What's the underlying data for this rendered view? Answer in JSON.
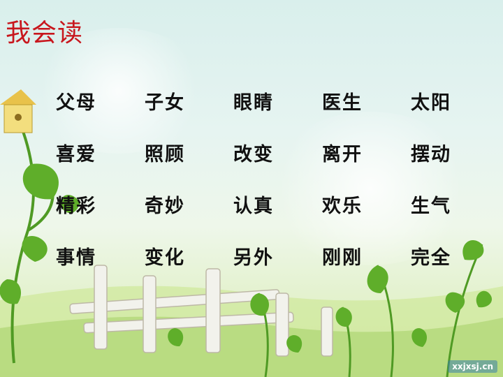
{
  "title": "我会读",
  "words": [
    [
      "父母",
      "子女",
      "眼睛",
      "医生",
      "太阳"
    ],
    [
      "喜爱",
      "照顾",
      "改变",
      "离开",
      "摆动"
    ],
    [
      "精彩",
      "奇妙",
      "认真",
      "欢乐",
      "生气"
    ],
    [
      "事情",
      "变化",
      "另外",
      "刚刚",
      "完全"
    ]
  ],
  "watermark": "xxjxsj.cn",
  "colors": {
    "title": "#c8161d",
    "word": "#111111",
    "leaf": "#5fae2a",
    "fence": "#f2f2ec"
  }
}
